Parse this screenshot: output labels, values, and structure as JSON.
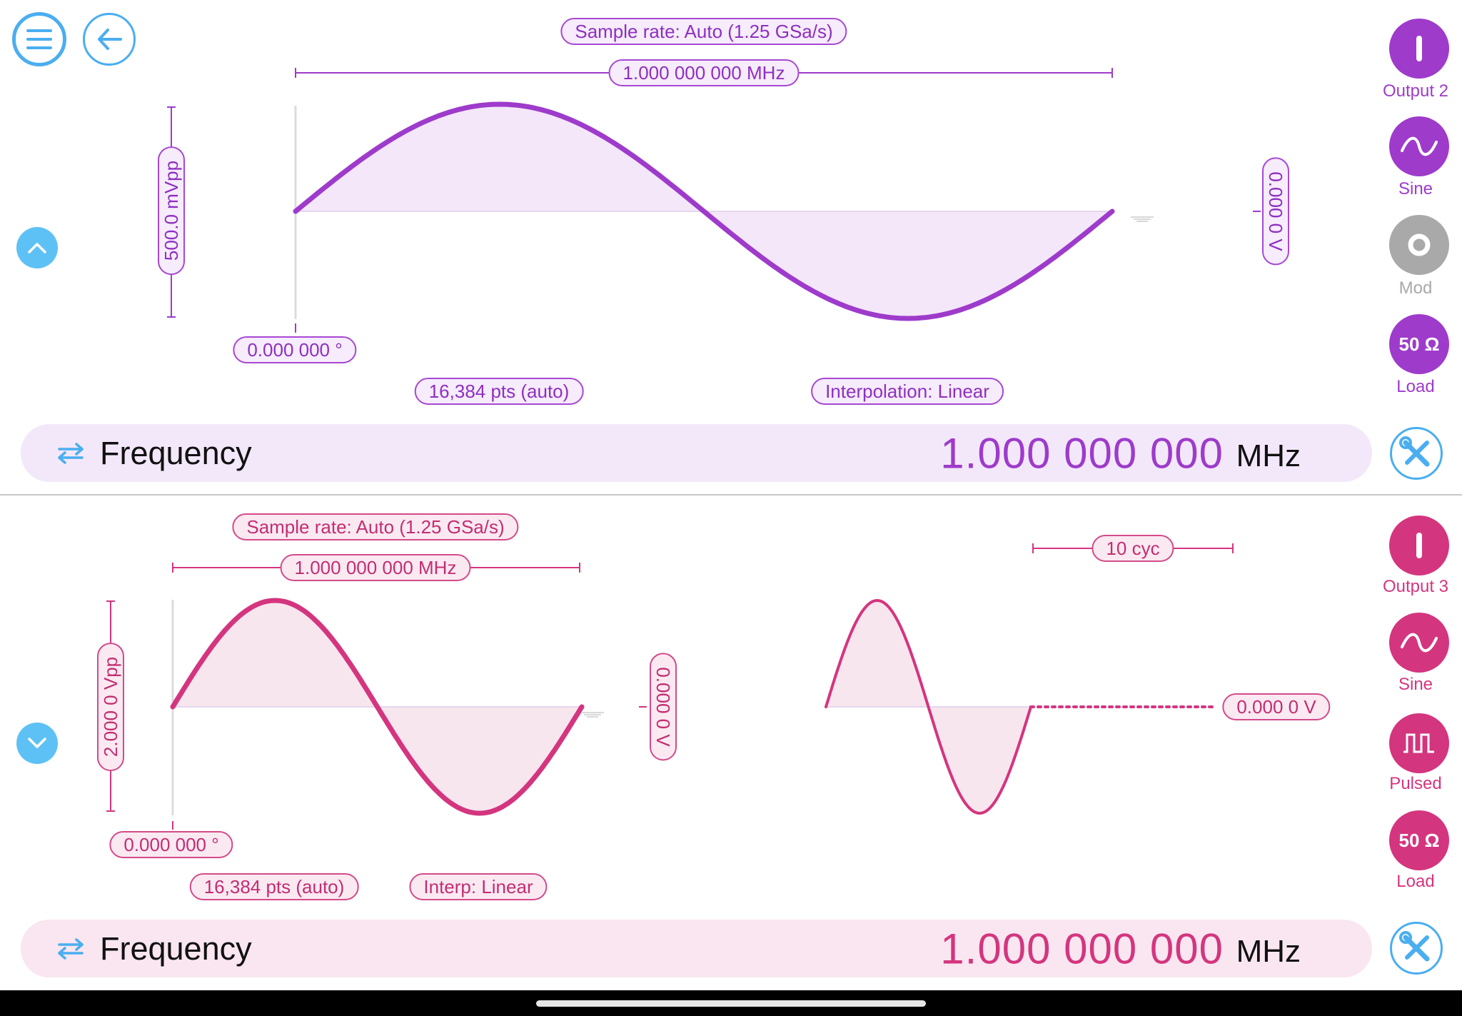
{
  "colors": {
    "ch2": "#9e3bcb",
    "ch3": "#d4357f",
    "accent": "#4aaef0",
    "inactive": "#a9a9a9"
  },
  "nav": {
    "menu_icon": "hamburger-menu-icon",
    "back_icon": "arrow-left-icon"
  },
  "channel2": {
    "sample_rate": "Sample rate: Auto (1.25 GSa/s)",
    "period_freq": "1.000 000 000 MHz",
    "amplitude": "500.0 mVpp",
    "offset": "0.000 0 V",
    "phase": "0.000 000 °",
    "points": "16,384 pts (auto)",
    "interpolation": "Interpolation: Linear",
    "waveform": "sine",
    "frequency_label": "Frequency",
    "frequency_value": "1.000 000 000",
    "frequency_unit": "MHz",
    "side": [
      {
        "label": "Output 2",
        "icon": "power-icon",
        "active": true
      },
      {
        "label": "Sine",
        "icon": "sine-wave-icon",
        "active": true
      },
      {
        "label": "Mod",
        "icon": "mod-ring-icon",
        "active": false
      },
      {
        "label": "Load",
        "icon": "50-ohm-icon",
        "glyph": "50 Ω",
        "active": true
      }
    ]
  },
  "channel3": {
    "sample_rate": "Sample rate: Auto (1.25 GSa/s)",
    "period_freq": "1.000 000 000 MHz",
    "amplitude": "2.000 0 Vpp",
    "offset": "0.000 0 V",
    "phase": "0.000 000 °",
    "points": "16,384 pts (auto)",
    "interpolation": "Interp: Linear",
    "burst_cycles": "10 cyc",
    "idle_level": "0.000 0 V",
    "waveform": "sine",
    "frequency_label": "Frequency",
    "frequency_value": "1.000 000 000",
    "frequency_unit": "MHz",
    "side": [
      {
        "label": "Output 3",
        "icon": "power-icon",
        "active": true
      },
      {
        "label": "Sine",
        "icon": "sine-wave-icon",
        "active": true
      },
      {
        "label": "Pulsed",
        "icon": "pulsed-icon",
        "active": true
      },
      {
        "label": "Load",
        "icon": "50-ohm-icon",
        "glyph": "50 Ω",
        "active": true
      }
    ]
  }
}
